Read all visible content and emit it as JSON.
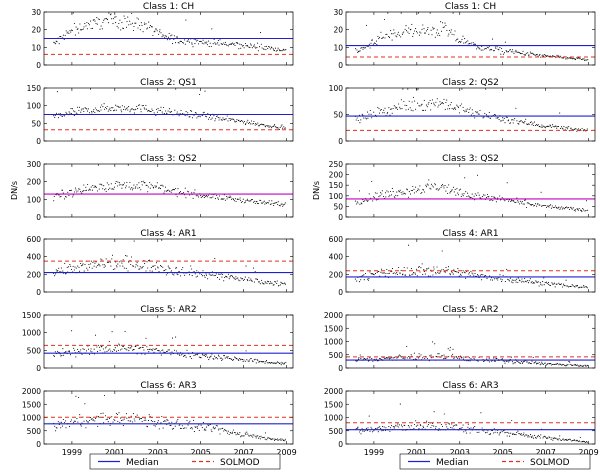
{
  "chart_data": [
    {
      "type": "scatter",
      "title": "Class 1: CH",
      "ylabel": "",
      "ylim": [
        0,
        30
      ],
      "yticks": [
        0,
        10,
        20,
        30
      ],
      "median": 15,
      "solmod": 6,
      "trend": [
        [
          1998.2,
          12
        ],
        [
          1998.8,
          18
        ],
        [
          1999.5,
          22
        ],
        [
          2000.5,
          25
        ],
        [
          2001.5,
          24.5
        ],
        [
          2002.5,
          22
        ],
        [
          2003.3,
          16
        ],
        [
          2004,
          14
        ],
        [
          2005,
          13
        ],
        [
          2006,
          12
        ],
        [
          2007,
          11
        ],
        [
          2008,
          10
        ],
        [
          2008.9,
          8.5
        ]
      ],
      "spread": 0.12
    },
    {
      "type": "scatter",
      "title": "Class 1: CH",
      "ylabel": "",
      "ylim": [
        0,
        30
      ],
      "yticks": [
        0,
        10,
        20,
        30
      ],
      "median": 11,
      "solmod": 4.5,
      "trend": [
        [
          1998.2,
          8
        ],
        [
          1998.8,
          11
        ],
        [
          1999.5,
          16
        ],
        [
          2000.5,
          19
        ],
        [
          2001.5,
          19
        ],
        [
          2002.3,
          20
        ],
        [
          2003,
          14
        ],
        [
          2004,
          10
        ],
        [
          2005,
          8
        ],
        [
          2006,
          6.5
        ],
        [
          2007,
          5
        ],
        [
          2008,
          4
        ],
        [
          2008.9,
          3
        ]
      ],
      "spread": 0.15
    },
    {
      "type": "scatter",
      "title": "Class 2: QS1",
      "ylabel": "",
      "ylim": [
        0,
        150
      ],
      "yticks": [
        0,
        50,
        100,
        150
      ],
      "median": 75,
      "solmod": 32,
      "trend": [
        [
          1998.2,
          68
        ],
        [
          1999,
          80
        ],
        [
          2000,
          90
        ],
        [
          2001,
          95
        ],
        [
          2002,
          93
        ],
        [
          2003,
          85
        ],
        [
          2004,
          78
        ],
        [
          2005,
          72
        ],
        [
          2006,
          62
        ],
        [
          2007,
          55
        ],
        [
          2008,
          45
        ],
        [
          2008.9,
          38
        ]
      ],
      "spread": 0.1
    },
    {
      "type": "scatter",
      "title": "Class 2: QS2",
      "ylabel": "",
      "ylim": [
        0,
        100
      ],
      "yticks": [
        0,
        50,
        100
      ],
      "median": 47,
      "solmod": 20,
      "trend": [
        [
          1998.2,
          40
        ],
        [
          1999,
          52
        ],
        [
          2000,
          62
        ],
        [
          2001,
          68
        ],
        [
          2002,
          72
        ],
        [
          2003,
          60
        ],
        [
          2004,
          50
        ],
        [
          2005,
          42
        ],
        [
          2006,
          35
        ],
        [
          2007,
          28
        ],
        [
          2008,
          24
        ],
        [
          2008.9,
          20
        ]
      ],
      "spread": 0.12
    },
    {
      "type": "scatter",
      "title": "Class 3: QS2",
      "ylabel": "DN/s",
      "ylim": [
        0,
        300
      ],
      "yticks": [
        0,
        100,
        200,
        300
      ],
      "median": 130,
      "solmod": 130,
      "trend": [
        [
          1998.2,
          115
        ],
        [
          1999,
          145
        ],
        [
          2000,
          165
        ],
        [
          2001,
          180
        ],
        [
          2002,
          185
        ],
        [
          2003,
          165
        ],
        [
          2004,
          140
        ],
        [
          2005,
          125
        ],
        [
          2006,
          110
        ],
        [
          2007,
          95
        ],
        [
          2008,
          80
        ],
        [
          2008.9,
          70
        ]
      ],
      "spread": 0.12
    },
    {
      "type": "scatter",
      "title": "Class 3: QS2",
      "ylabel": "DN/s",
      "ylim": [
        0,
        250
      ],
      "yticks": [
        0,
        50,
        100,
        150,
        200,
        250
      ],
      "median": 85,
      "solmod": 85,
      "trend": [
        [
          1998.2,
          70
        ],
        [
          1999,
          95
        ],
        [
          2000,
          115
        ],
        [
          2001,
          130
        ],
        [
          2002,
          145
        ],
        [
          2003,
          115
        ],
        [
          2004,
          95
        ],
        [
          2005,
          80
        ],
        [
          2006,
          65
        ],
        [
          2007,
          50
        ],
        [
          2008,
          40
        ],
        [
          2008.9,
          32
        ]
      ],
      "spread": 0.15
    },
    {
      "type": "scatter",
      "title": "Class 4: AR1",
      "ylabel": "",
      "ylim": [
        0,
        600
      ],
      "yticks": [
        0,
        200,
        400,
        600
      ],
      "median": 220,
      "solmod": 350,
      "trend": [
        [
          1998.2,
          230
        ],
        [
          1999,
          260
        ],
        [
          2000,
          300
        ],
        [
          2001,
          320
        ],
        [
          2002,
          315
        ],
        [
          2003,
          280
        ],
        [
          2004,
          240
        ],
        [
          2005,
          210
        ],
        [
          2006,
          180
        ],
        [
          2007,
          140
        ],
        [
          2008,
          110
        ],
        [
          2008.9,
          95
        ]
      ],
      "spread": 0.18
    },
    {
      "type": "scatter",
      "title": "Class 4: AR1",
      "ylabel": "",
      "ylim": [
        0,
        600
      ],
      "yticks": [
        0,
        200,
        400,
        600
      ],
      "median": 170,
      "solmod": 240,
      "trend": [
        [
          1998.2,
          160
        ],
        [
          1999,
          190
        ],
        [
          2000,
          220
        ],
        [
          2001,
          235
        ],
        [
          2002,
          250
        ],
        [
          2003,
          215
        ],
        [
          2004,
          180
        ],
        [
          2005,
          155
        ],
        [
          2006,
          125
        ],
        [
          2007,
          95
        ],
        [
          2008,
          70
        ],
        [
          2008.9,
          55
        ]
      ],
      "spread": 0.2
    },
    {
      "type": "scatter",
      "title": "Class 5: AR2",
      "ylabel": "",
      "ylim": [
        0,
        1500
      ],
      "yticks": [
        0,
        500,
        1000,
        1500
      ],
      "median": 420,
      "solmod": 640,
      "trend": [
        [
          1998.2,
          380
        ],
        [
          1999,
          450
        ],
        [
          2000,
          520
        ],
        [
          2001,
          560
        ],
        [
          2002,
          540
        ],
        [
          2003,
          480
        ],
        [
          2004,
          420
        ],
        [
          2005,
          360
        ],
        [
          2006,
          300
        ],
        [
          2007,
          230
        ],
        [
          2008,
          170
        ],
        [
          2008.9,
          130
        ]
      ],
      "spread": 0.2
    },
    {
      "type": "scatter",
      "title": "Class 5: AR2",
      "ylabel": "",
      "ylim": [
        0,
        2000
      ],
      "yticks": [
        0,
        500,
        1000,
        1500,
        2000
      ],
      "median": 300,
      "solmod": 420,
      "trend": [
        [
          1998.2,
          280
        ],
        [
          1999,
          330
        ],
        [
          2000,
          380
        ],
        [
          2001,
          400
        ],
        [
          2002,
          420
        ],
        [
          2003,
          370
        ],
        [
          2004,
          320
        ],
        [
          2005,
          270
        ],
        [
          2006,
          220
        ],
        [
          2007,
          160
        ],
        [
          2008,
          110
        ],
        [
          2008.9,
          80
        ]
      ],
      "spread": 0.22
    },
    {
      "type": "scatter",
      "title": "Class 6: AR3",
      "ylabel": "",
      "ylim": [
        0,
        2000
      ],
      "yticks": [
        0,
        500,
        1000,
        1500,
        2000
      ],
      "median": 760,
      "solmod": 1010,
      "trend": [
        [
          1998.2,
          700
        ],
        [
          1999,
          800
        ],
        [
          2000,
          900
        ],
        [
          2001,
          950
        ],
        [
          2002,
          920
        ],
        [
          2003,
          820
        ],
        [
          2004,
          720
        ],
        [
          2005,
          620
        ],
        [
          2006,
          500
        ],
        [
          2007,
          360
        ],
        [
          2008,
          220
        ],
        [
          2008.9,
          150
        ]
      ],
      "spread": 0.2
    },
    {
      "type": "scatter",
      "title": "Class 6: AR3",
      "ylabel": "",
      "ylim": [
        0,
        2000
      ],
      "yticks": [
        0,
        500,
        1000,
        1500,
        2000
      ],
      "median": 540,
      "solmod": 800,
      "trend": [
        [
          1998.2,
          500
        ],
        [
          1999,
          560
        ],
        [
          2000,
          620
        ],
        [
          2001,
          660
        ],
        [
          2002,
          680
        ],
        [
          2003,
          600
        ],
        [
          2004,
          520
        ],
        [
          2005,
          440
        ],
        [
          2006,
          350
        ],
        [
          2007,
          240
        ],
        [
          2008,
          150
        ],
        [
          2008.9,
          90
        ]
      ],
      "spread": 0.22
    }
  ],
  "xaxis": {
    "ticks": [
      1999,
      2001,
      2003,
      2005,
      2007,
      2009
    ],
    "labels": [
      "1999",
      "2001",
      "2003",
      "2005",
      "2007",
      "2009"
    ],
    "xlim": [
      1997.7,
      2009.3
    ]
  },
  "legend": {
    "median_label": "Median",
    "solmod_label": "SOLMOD",
    "placement": "bottom"
  },
  "colors": {
    "median": "#2020d0",
    "solmod": "#e03020",
    "points": "#000000",
    "magenta": "#c000c0"
  }
}
